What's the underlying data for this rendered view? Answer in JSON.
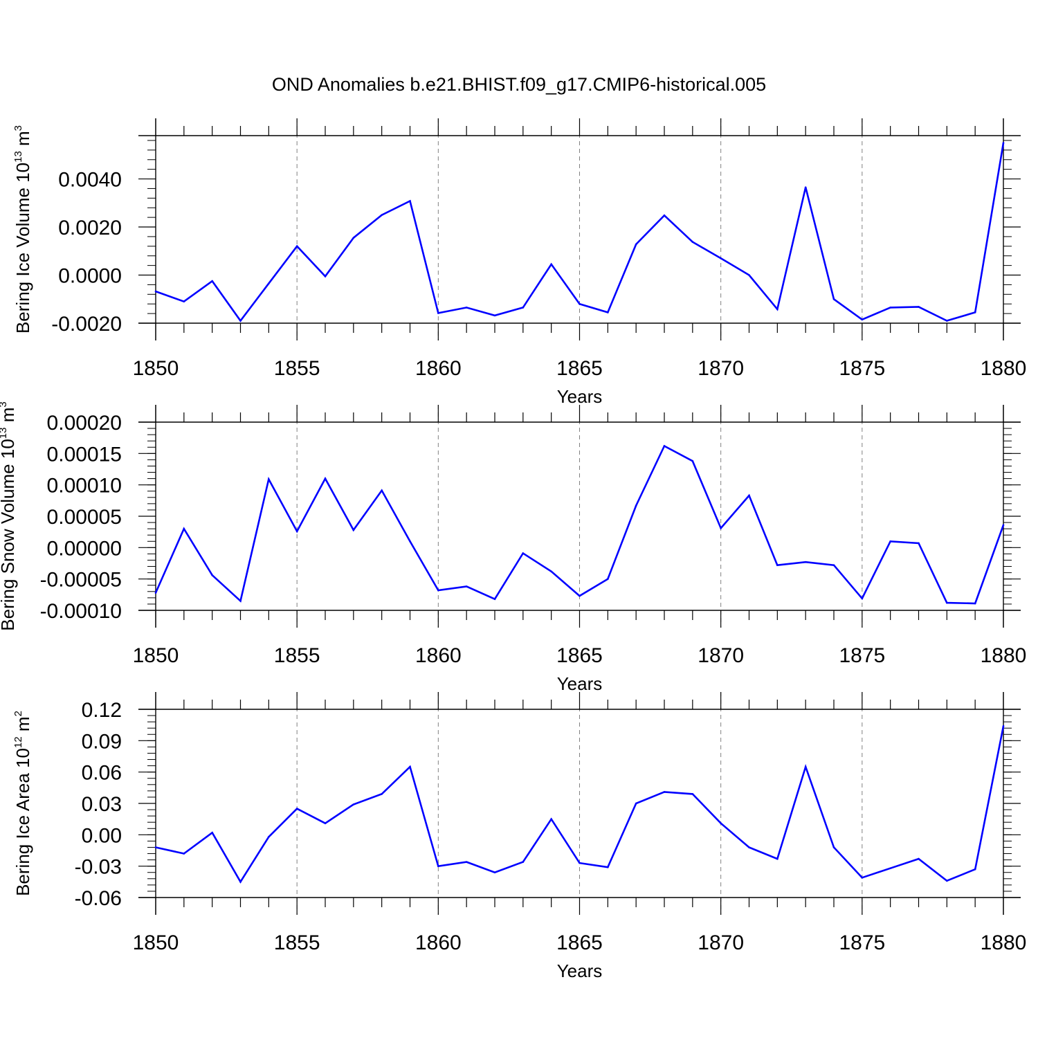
{
  "figure_title": "OND Anomalies b.e21.BHIST.f09_g17.CMIP6-historical.005",
  "colors": {
    "line": "#0000ff",
    "axis": "#000000",
    "grid": "#808080"
  },
  "chart_data": [
    {
      "type": "line",
      "ylabel": {
        "text": "Bering Ice Volume 10",
        "exp": "13",
        "unit": " m",
        "unit_exp": "3"
      },
      "xlabel": "Years",
      "xlim": [
        1850,
        1880
      ],
      "ylim": [
        -0.002,
        0.0058
      ],
      "x_ticks": [
        "1850",
        "1855",
        "1860",
        "1865",
        "1870",
        "1875",
        "1880"
      ],
      "y_ticks": [
        {
          "value": -0.002,
          "label": "-0.0020"
        },
        {
          "value": 0.0,
          "label": "0.0000"
        },
        {
          "value": 0.002,
          "label": "0.0020"
        },
        {
          "value": 0.004,
          "label": "0.0040"
        }
      ],
      "y_minor_step": 0.0004,
      "series": [
        {
          "name": "Bering Ice Volume",
          "x": [
            1850,
            1851,
            1852,
            1853,
            1854,
            1855,
            1856,
            1857,
            1858,
            1859,
            1860,
            1861,
            1862,
            1863,
            1864,
            1865,
            1866,
            1867,
            1868,
            1869,
            1870,
            1871,
            1872,
            1873,
            1874,
            1875,
            1876,
            1877,
            1878,
            1879,
            1880
          ],
          "values": [
            -0.00068,
            -0.0011,
            -0.00025,
            -0.0019,
            -0.00035,
            0.0012,
            -5e-05,
            0.00155,
            0.0025,
            0.00308,
            -0.00158,
            -0.00135,
            -0.00168,
            -0.00135,
            0.00045,
            -0.0012,
            -0.00155,
            0.00128,
            0.00248,
            0.00138,
            0.0007,
            0.0,
            -0.00142,
            0.00365,
            -0.001,
            -0.00185,
            -0.00135,
            -0.00132,
            -0.0019,
            -0.00155,
            0.0055
          ]
        }
      ]
    },
    {
      "type": "line",
      "ylabel": {
        "text": "Bering Snow Volume 10",
        "exp": "13",
        "unit": " m",
        "unit_exp": "3"
      },
      "xlabel": "Years",
      "xlim": [
        1850,
        1880
      ],
      "ylim": [
        -0.0001,
        0.0002
      ],
      "x_ticks": [
        "1850",
        "1855",
        "1860",
        "1865",
        "1870",
        "1875",
        "1880"
      ],
      "y_ticks": [
        {
          "value": -0.0001,
          "label": "-0.00010"
        },
        {
          "value": -5e-05,
          "label": "-0.00005"
        },
        {
          "value": 0.0,
          "label": "0.00000"
        },
        {
          "value": 5e-05,
          "label": "0.00005"
        },
        {
          "value": 0.0001,
          "label": "0.00010"
        },
        {
          "value": 0.00015,
          "label": "0.00015"
        },
        {
          "value": 0.0002,
          "label": "0.00020"
        }
      ],
      "y_minor_step": 1e-05,
      "series": [
        {
          "name": "Bering Snow Volume",
          "x": [
            1850,
            1851,
            1852,
            1853,
            1854,
            1855,
            1856,
            1857,
            1858,
            1859,
            1860,
            1861,
            1862,
            1863,
            1864,
            1865,
            1866,
            1867,
            1868,
            1869,
            1870,
            1871,
            1872,
            1873,
            1874,
            1875,
            1876,
            1877,
            1878,
            1879,
            1880
          ],
          "values": [
            -7.2e-05,
            3e-05,
            -4.4e-05,
            -8.5e-05,
            0.000109,
            2.6e-05,
            0.00011,
            2.8e-05,
            9.1e-05,
            1e-05,
            -6.8e-05,
            -6.2e-05,
            -8.2e-05,
            -9e-06,
            -3.8e-05,
            -7.7e-05,
            -5e-05,
            6.7e-05,
            0.000162,
            0.000138,
            3.1e-05,
            8.3e-05,
            -2.8e-05,
            -2.3e-05,
            -2.8e-05,
            -8.1e-05,
            1e-05,
            7e-06,
            -8.8e-05,
            -8.9e-05,
            3.6e-05
          ]
        }
      ]
    },
    {
      "type": "line",
      "ylabel": {
        "text": "Bering Ice Area 10",
        "exp": "12",
        "unit": " m",
        "unit_exp": "2"
      },
      "xlabel": "Years",
      "xlim": [
        1850,
        1880
      ],
      "ylim": [
        -0.06,
        0.12
      ],
      "x_ticks": [
        "1850",
        "1855",
        "1860",
        "1865",
        "1870",
        "1875",
        "1880"
      ],
      "y_ticks": [
        {
          "value": -0.06,
          "label": "-0.06"
        },
        {
          "value": -0.03,
          "label": "-0.03"
        },
        {
          "value": 0.0,
          "label": "0.00"
        },
        {
          "value": 0.03,
          "label": "0.03"
        },
        {
          "value": 0.06,
          "label": "0.06"
        },
        {
          "value": 0.09,
          "label": "0.09"
        },
        {
          "value": 0.12,
          "label": "0.12"
        }
      ],
      "y_minor_step": 0.006,
      "series": [
        {
          "name": "Bering Ice Area",
          "x": [
            1850,
            1851,
            1852,
            1853,
            1854,
            1855,
            1856,
            1857,
            1858,
            1859,
            1860,
            1861,
            1862,
            1863,
            1864,
            1865,
            1866,
            1867,
            1868,
            1869,
            1870,
            1871,
            1872,
            1873,
            1874,
            1875,
            1876,
            1877,
            1878,
            1879,
            1880
          ],
          "values": [
            -0.012,
            -0.018,
            0.002,
            -0.045,
            -0.002,
            0.025,
            0.011,
            0.029,
            0.039,
            0.065,
            -0.03,
            -0.026,
            -0.036,
            -0.026,
            0.015,
            -0.027,
            -0.031,
            0.03,
            0.041,
            0.039,
            0.011,
            -0.012,
            -0.023,
            0.065,
            -0.012,
            -0.041,
            -0.032,
            -0.023,
            -0.044,
            -0.033,
            0.104
          ]
        }
      ]
    }
  ]
}
